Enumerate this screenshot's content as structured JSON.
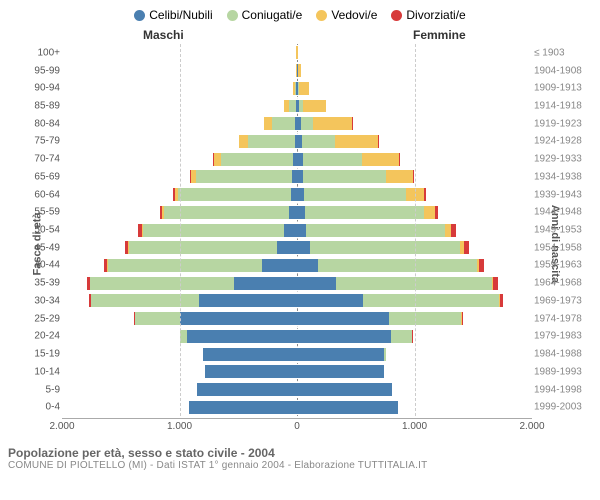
{
  "legend": [
    {
      "key": "celibi",
      "label": "Celibi/Nubili",
      "color": "#4a7fb0"
    },
    {
      "key": "coniugati",
      "label": "Coniugati/e",
      "color": "#b7d6a2"
    },
    {
      "key": "vedovi",
      "label": "Vedovi/e",
      "color": "#f4c55c"
    },
    {
      "key": "divorziati",
      "label": "Divorziati/e",
      "color": "#d73a3a"
    }
  ],
  "headers": {
    "left": "Maschi",
    "right": "Femmine"
  },
  "axis_labels": {
    "left": "Fasce di età",
    "right": "Anni di nascita"
  },
  "x_axis": {
    "max": 2000,
    "ticks": [
      {
        "pos": -2000,
        "label": "2.000"
      },
      {
        "pos": -1000,
        "label": "1.000"
      },
      {
        "pos": 0,
        "label": "0"
      },
      {
        "pos": 1000,
        "label": "1.000"
      },
      {
        "pos": 2000,
        "label": "2.000"
      }
    ],
    "grid_at": [
      -1000,
      1000
    ]
  },
  "rows": [
    {
      "age": "100+",
      "year": "≤ 1903",
      "m": {
        "celibi": 0,
        "coniugati": 0,
        "vedovi": 5,
        "divorziati": 0
      },
      "f": {
        "celibi": 0,
        "coniugati": 0,
        "vedovi": 5,
        "divorziati": 0
      }
    },
    {
      "age": "95-99",
      "year": "1904-1908",
      "m": {
        "celibi": 0,
        "coniugati": 0,
        "vedovi": 10,
        "divorziati": 0
      },
      "f": {
        "celibi": 5,
        "coniugati": 0,
        "vedovi": 30,
        "divorziati": 0
      }
    },
    {
      "age": "90-94",
      "year": "1909-1913",
      "m": {
        "celibi": 5,
        "coniugati": 10,
        "vedovi": 20,
        "divorziati": 0
      },
      "f": {
        "celibi": 10,
        "coniugati": 5,
        "vedovi": 90,
        "divorziati": 0
      }
    },
    {
      "age": "85-89",
      "year": "1914-1918",
      "m": {
        "celibi": 10,
        "coniugati": 60,
        "vedovi": 40,
        "divorziati": 0
      },
      "f": {
        "celibi": 20,
        "coniugati": 30,
        "vedovi": 200,
        "divorziati": 0
      }
    },
    {
      "age": "80-84",
      "year": "1919-1923",
      "m": {
        "celibi": 15,
        "coniugati": 200,
        "vedovi": 70,
        "divorziati": 0
      },
      "f": {
        "celibi": 30,
        "coniugati": 110,
        "vedovi": 330,
        "divorziati": 5
      }
    },
    {
      "age": "75-79",
      "year": "1924-1928",
      "m": {
        "celibi": 20,
        "coniugati": 400,
        "vedovi": 70,
        "divorziati": 5
      },
      "f": {
        "celibi": 40,
        "coniugati": 280,
        "vedovi": 370,
        "divorziati": 5
      }
    },
    {
      "age": "70-74",
      "year": "1929-1933",
      "m": {
        "celibi": 30,
        "coniugati": 620,
        "vedovi": 60,
        "divorziati": 5
      },
      "f": {
        "celibi": 50,
        "coniugati": 500,
        "vedovi": 320,
        "divorziati": 10
      }
    },
    {
      "age": "65-69",
      "year": "1934-1938",
      "m": {
        "celibi": 40,
        "coniugati": 820,
        "vedovi": 40,
        "divorziati": 10
      },
      "f": {
        "celibi": 55,
        "coniugati": 700,
        "vedovi": 230,
        "divorziati": 15
      }
    },
    {
      "age": "60-64",
      "year": "1939-1943",
      "m": {
        "celibi": 55,
        "coniugati": 960,
        "vedovi": 25,
        "divorziati": 15
      },
      "f": {
        "celibi": 60,
        "coniugati": 870,
        "vedovi": 150,
        "divorziati": 20
      }
    },
    {
      "age": "55-59",
      "year": "1944-1948",
      "m": {
        "celibi": 70,
        "coniugati": 1060,
        "vedovi": 15,
        "divorziati": 25
      },
      "f": {
        "celibi": 65,
        "coniugati": 1020,
        "vedovi": 90,
        "divorziati": 25
      }
    },
    {
      "age": "50-54",
      "year": "1949-1953",
      "m": {
        "celibi": 110,
        "coniugati": 1200,
        "vedovi": 10,
        "divorziati": 30
      },
      "f": {
        "celibi": 80,
        "coniugati": 1180,
        "vedovi": 55,
        "divorziati": 35
      }
    },
    {
      "age": "45-49",
      "year": "1954-1958",
      "m": {
        "celibi": 170,
        "coniugati": 1260,
        "vedovi": 8,
        "divorziati": 30
      },
      "f": {
        "celibi": 110,
        "coniugati": 1280,
        "vedovi": 35,
        "divorziati": 40
      }
    },
    {
      "age": "40-44",
      "year": "1959-1963",
      "m": {
        "celibi": 300,
        "coniugati": 1310,
        "vedovi": 5,
        "divorziati": 30
      },
      "f": {
        "celibi": 180,
        "coniugati": 1350,
        "vedovi": 20,
        "divorziati": 40
      }
    },
    {
      "age": "35-39",
      "year": "1964-1968",
      "m": {
        "celibi": 540,
        "coniugati": 1220,
        "vedovi": 3,
        "divorziati": 25
      },
      "f": {
        "celibi": 330,
        "coniugati": 1330,
        "vedovi": 12,
        "divorziati": 35
      }
    },
    {
      "age": "30-34",
      "year": "1969-1973",
      "m": {
        "celibi": 830,
        "coniugati": 920,
        "vedovi": 2,
        "divorziati": 15
      },
      "f": {
        "celibi": 560,
        "coniugati": 1160,
        "vedovi": 8,
        "divorziati": 25
      }
    },
    {
      "age": "25-29",
      "year": "1974-1978",
      "m": {
        "celibi": 1000,
        "coniugati": 380,
        "vedovi": 0,
        "divorziati": 5
      },
      "f": {
        "celibi": 780,
        "coniugati": 620,
        "vedovi": 3,
        "divorziati": 10
      }
    },
    {
      "age": "20-24",
      "year": "1979-1983",
      "m": {
        "celibi": 940,
        "coniugati": 60,
        "vedovi": 0,
        "divorziati": 0
      },
      "f": {
        "celibi": 800,
        "coniugati": 180,
        "vedovi": 0,
        "divorziati": 3
      }
    },
    {
      "age": "15-19",
      "year": "1984-1988",
      "m": {
        "celibi": 800,
        "coniugati": 3,
        "vedovi": 0,
        "divorziati": 0
      },
      "f": {
        "celibi": 740,
        "coniugati": 15,
        "vedovi": 0,
        "divorziati": 0
      }
    },
    {
      "age": "10-14",
      "year": "1989-1993",
      "m": {
        "celibi": 780,
        "coniugati": 0,
        "vedovi": 0,
        "divorziati": 0
      },
      "f": {
        "celibi": 740,
        "coniugati": 0,
        "vedovi": 0,
        "divorziati": 0
      }
    },
    {
      "age": "5-9",
      "year": "1994-1998",
      "m": {
        "celibi": 850,
        "coniugati": 0,
        "vedovi": 0,
        "divorziati": 0
      },
      "f": {
        "celibi": 810,
        "coniugati": 0,
        "vedovi": 0,
        "divorziati": 0
      }
    },
    {
      "age": "0-4",
      "year": "1999-2003",
      "m": {
        "celibi": 920,
        "coniugati": 0,
        "vedovi": 0,
        "divorziati": 0
      },
      "f": {
        "celibi": 860,
        "coniugati": 0,
        "vedovi": 0,
        "divorziati": 0
      }
    }
  ],
  "grid_color": "#cccccc",
  "center_color": "#888888",
  "footer": {
    "title": "Popolazione per età, sesso e stato civile - 2004",
    "sub": "COMUNE DI PIOLTELLO (MI) - Dati ISTAT 1° gennaio 2004 - Elaborazione TUTTITALIA.IT"
  }
}
